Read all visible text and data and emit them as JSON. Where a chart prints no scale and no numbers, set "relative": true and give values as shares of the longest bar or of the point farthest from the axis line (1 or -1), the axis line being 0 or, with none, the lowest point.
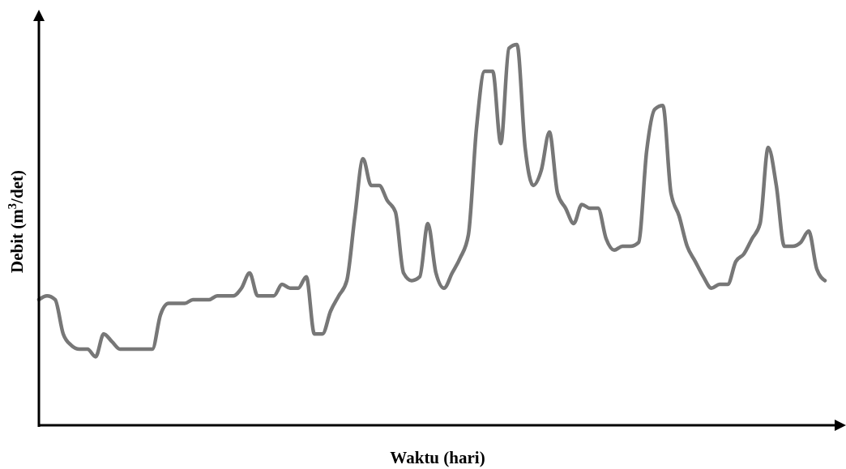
{
  "chart_data": {
    "type": "line",
    "relative": true,
    "xlabel": "Waktu (hari)",
    "ylabel": "Debit (m$^{3}$/det)",
    "grid": false,
    "marker": "none",
    "line_style": "solid",
    "categories": [
      null,
      null,
      null,
      null,
      null,
      null,
      null,
      null,
      null,
      null,
      null,
      null,
      null,
      null,
      null,
      null,
      null,
      null,
      null,
      null,
      null,
      null,
      null,
      null,
      null,
      null,
      null,
      null,
      null,
      null,
      null,
      null,
      null,
      null,
      null,
      null,
      null,
      null,
      null,
      null,
      null,
      null,
      null,
      null,
      null,
      null,
      null,
      null,
      null,
      null,
      null,
      null,
      null,
      null,
      null,
      null,
      null,
      null,
      null,
      null,
      null,
      null,
      null,
      null,
      null,
      null,
      null,
      null,
      null,
      null,
      null,
      null,
      null,
      null,
      null,
      null,
      null,
      null,
      null,
      null,
      null,
      null,
      null,
      null,
      null,
      null,
      null,
      null,
      null,
      null,
      null,
      null,
      null,
      null,
      null,
      null,
      null,
      null
    ],
    "series": [
      {
        "color": "#777777",
        "values": [
          0.33,
          0.34,
          0.33,
          0.24,
          0.21,
          0.2,
          0.2,
          0.18,
          0.24,
          0.22,
          0.2,
          0.2,
          0.2,
          0.2,
          0.2,
          0.29,
          0.32,
          0.32,
          0.32,
          0.33,
          0.33,
          0.33,
          0.34,
          0.34,
          0.34,
          0.36,
          0.4,
          0.34,
          0.34,
          0.34,
          0.37,
          0.36,
          0.36,
          0.39,
          0.24,
          0.24,
          0.3,
          0.34,
          0.38,
          0.55,
          0.7,
          0.63,
          0.63,
          0.59,
          0.56,
          0.4,
          0.38,
          0.39,
          0.53,
          0.4,
          0.36,
          0.4,
          0.44,
          0.5,
          0.78,
          0.93,
          0.93,
          0.74,
          0.99,
          1,
          0.73,
          0.63,
          0.67,
          0.77,
          0.61,
          0.57,
          0.53,
          0.58,
          0.57,
          0.57,
          0.49,
          0.46,
          0.47,
          0.47,
          0.48,
          0.72,
          0.83,
          0.84,
          0.61,
          0.55,
          0.47,
          0.43,
          0.39,
          0.36,
          0.37,
          0.37,
          0.43,
          0.45,
          0.49,
          0.53,
          0.73,
          0.63,
          0.47,
          0.47,
          0.48,
          0.51,
          0.41,
          0.38
        ]
      }
    ]
  }
}
